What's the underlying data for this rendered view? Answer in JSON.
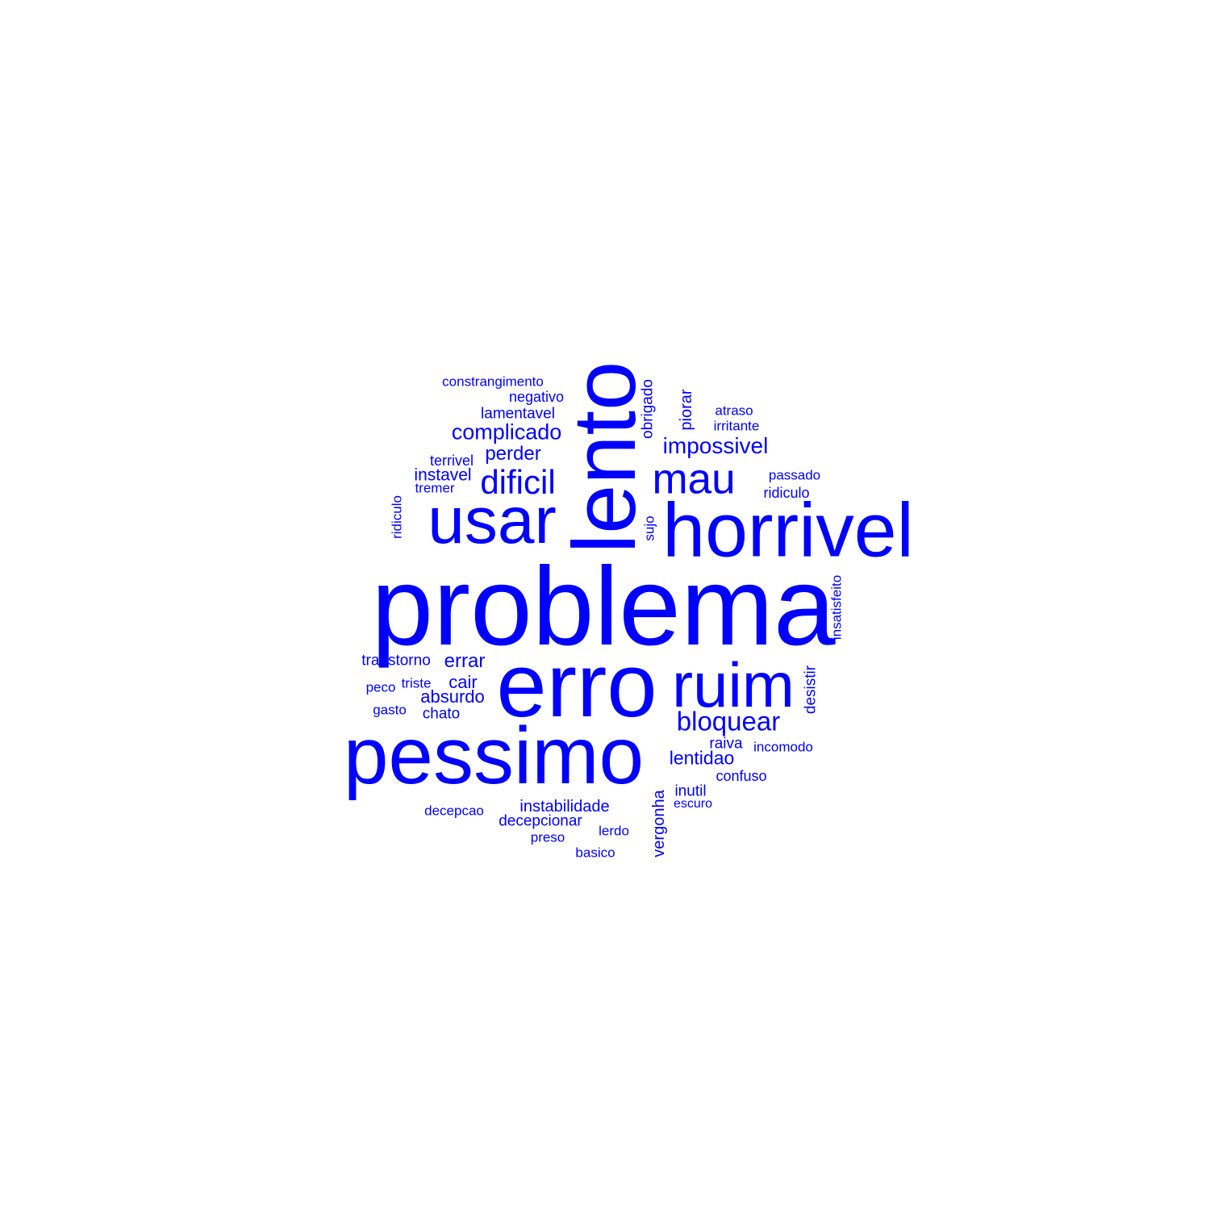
{
  "color": "#0000ff",
  "words": {
    "problema": "problema",
    "erro": "erro",
    "pessimo": "pessimo",
    "horrivel": "horrivel",
    "lento": "lento",
    "usar": "usar",
    "ruim": "ruim",
    "mau": "mau",
    "dificil": "dificil",
    "bloquear": "bloquear",
    "impossivel": "impossivel",
    "complicado": "complicado",
    "perder": "perder",
    "errar": "errar",
    "absurdo": "absurdo",
    "cair": "cair",
    "lentidao": "lentidao",
    "instavel": "instavel",
    "lamentavel": "lamentavel",
    "negativo": "negativo",
    "constrangimento": "constrangimento",
    "terrivel": "terrivel",
    "tremer": "tremer",
    "ridiculo_v": "ridiculo",
    "ridiculo_h": "ridiculo",
    "obrigado": "obrigado",
    "piorar": "piorar",
    "atraso": "atraso",
    "irritante": "irritante",
    "passado": "passado",
    "sujo": "sujo",
    "insatisfeito": "insatisfeito",
    "desistir": "desistir",
    "transtorno": "transtorno",
    "peco": "peco",
    "triste": "triste",
    "gasto": "gasto",
    "chato": "chato",
    "raiva": "raiva",
    "incomodo": "incomodo",
    "confuso": "confuso",
    "inutil": "inutil",
    "escuro": "escuro",
    "vergonha": "vergonha",
    "instabilidade": "instabilidade",
    "decepcionar": "decepcionar",
    "decepcao": "decepcao",
    "lerdo": "lerdo",
    "preso": "preso",
    "basico": "basico"
  }
}
